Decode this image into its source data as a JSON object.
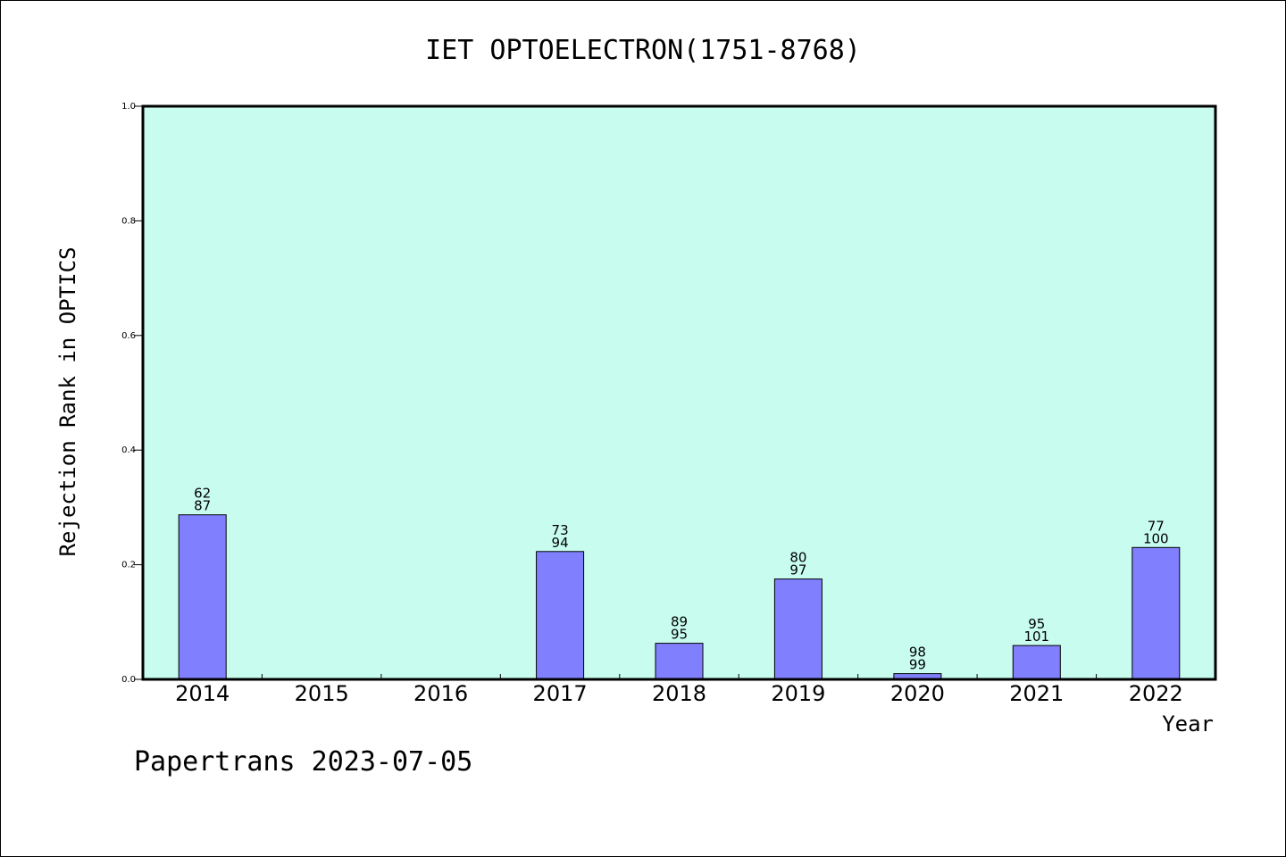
{
  "chart_data": {
    "type": "bar",
    "title": "IET OPTOELECTRON(1751-8768)",
    "xlabel": "Year",
    "ylabel": "Rejection Rank in OPTICS",
    "ylim": [
      0,
      1.0
    ],
    "yticks": [
      "0.0",
      "0.2",
      "0.4",
      "0.6",
      "0.8",
      "1.0"
    ],
    "categories": [
      "2014",
      "2015",
      "2016",
      "2017",
      "2018",
      "2019",
      "2020",
      "2021",
      "2022"
    ],
    "values": [
      0.287,
      0,
      0,
      0.223,
      0.063,
      0.175,
      0.01,
      0.059,
      0.23
    ],
    "labels_top": [
      "62",
      "",
      "",
      "73",
      "89",
      "80",
      "98",
      "95",
      "77"
    ],
    "labels_bottom": [
      "87",
      "",
      "",
      "94",
      "95",
      "97",
      "99",
      "101",
      "100"
    ],
    "bar_color": "#8080ff",
    "background_color": "#c8fcee",
    "grid": false
  },
  "footer": {
    "watermark": "Papertrans 2023-07-05"
  }
}
